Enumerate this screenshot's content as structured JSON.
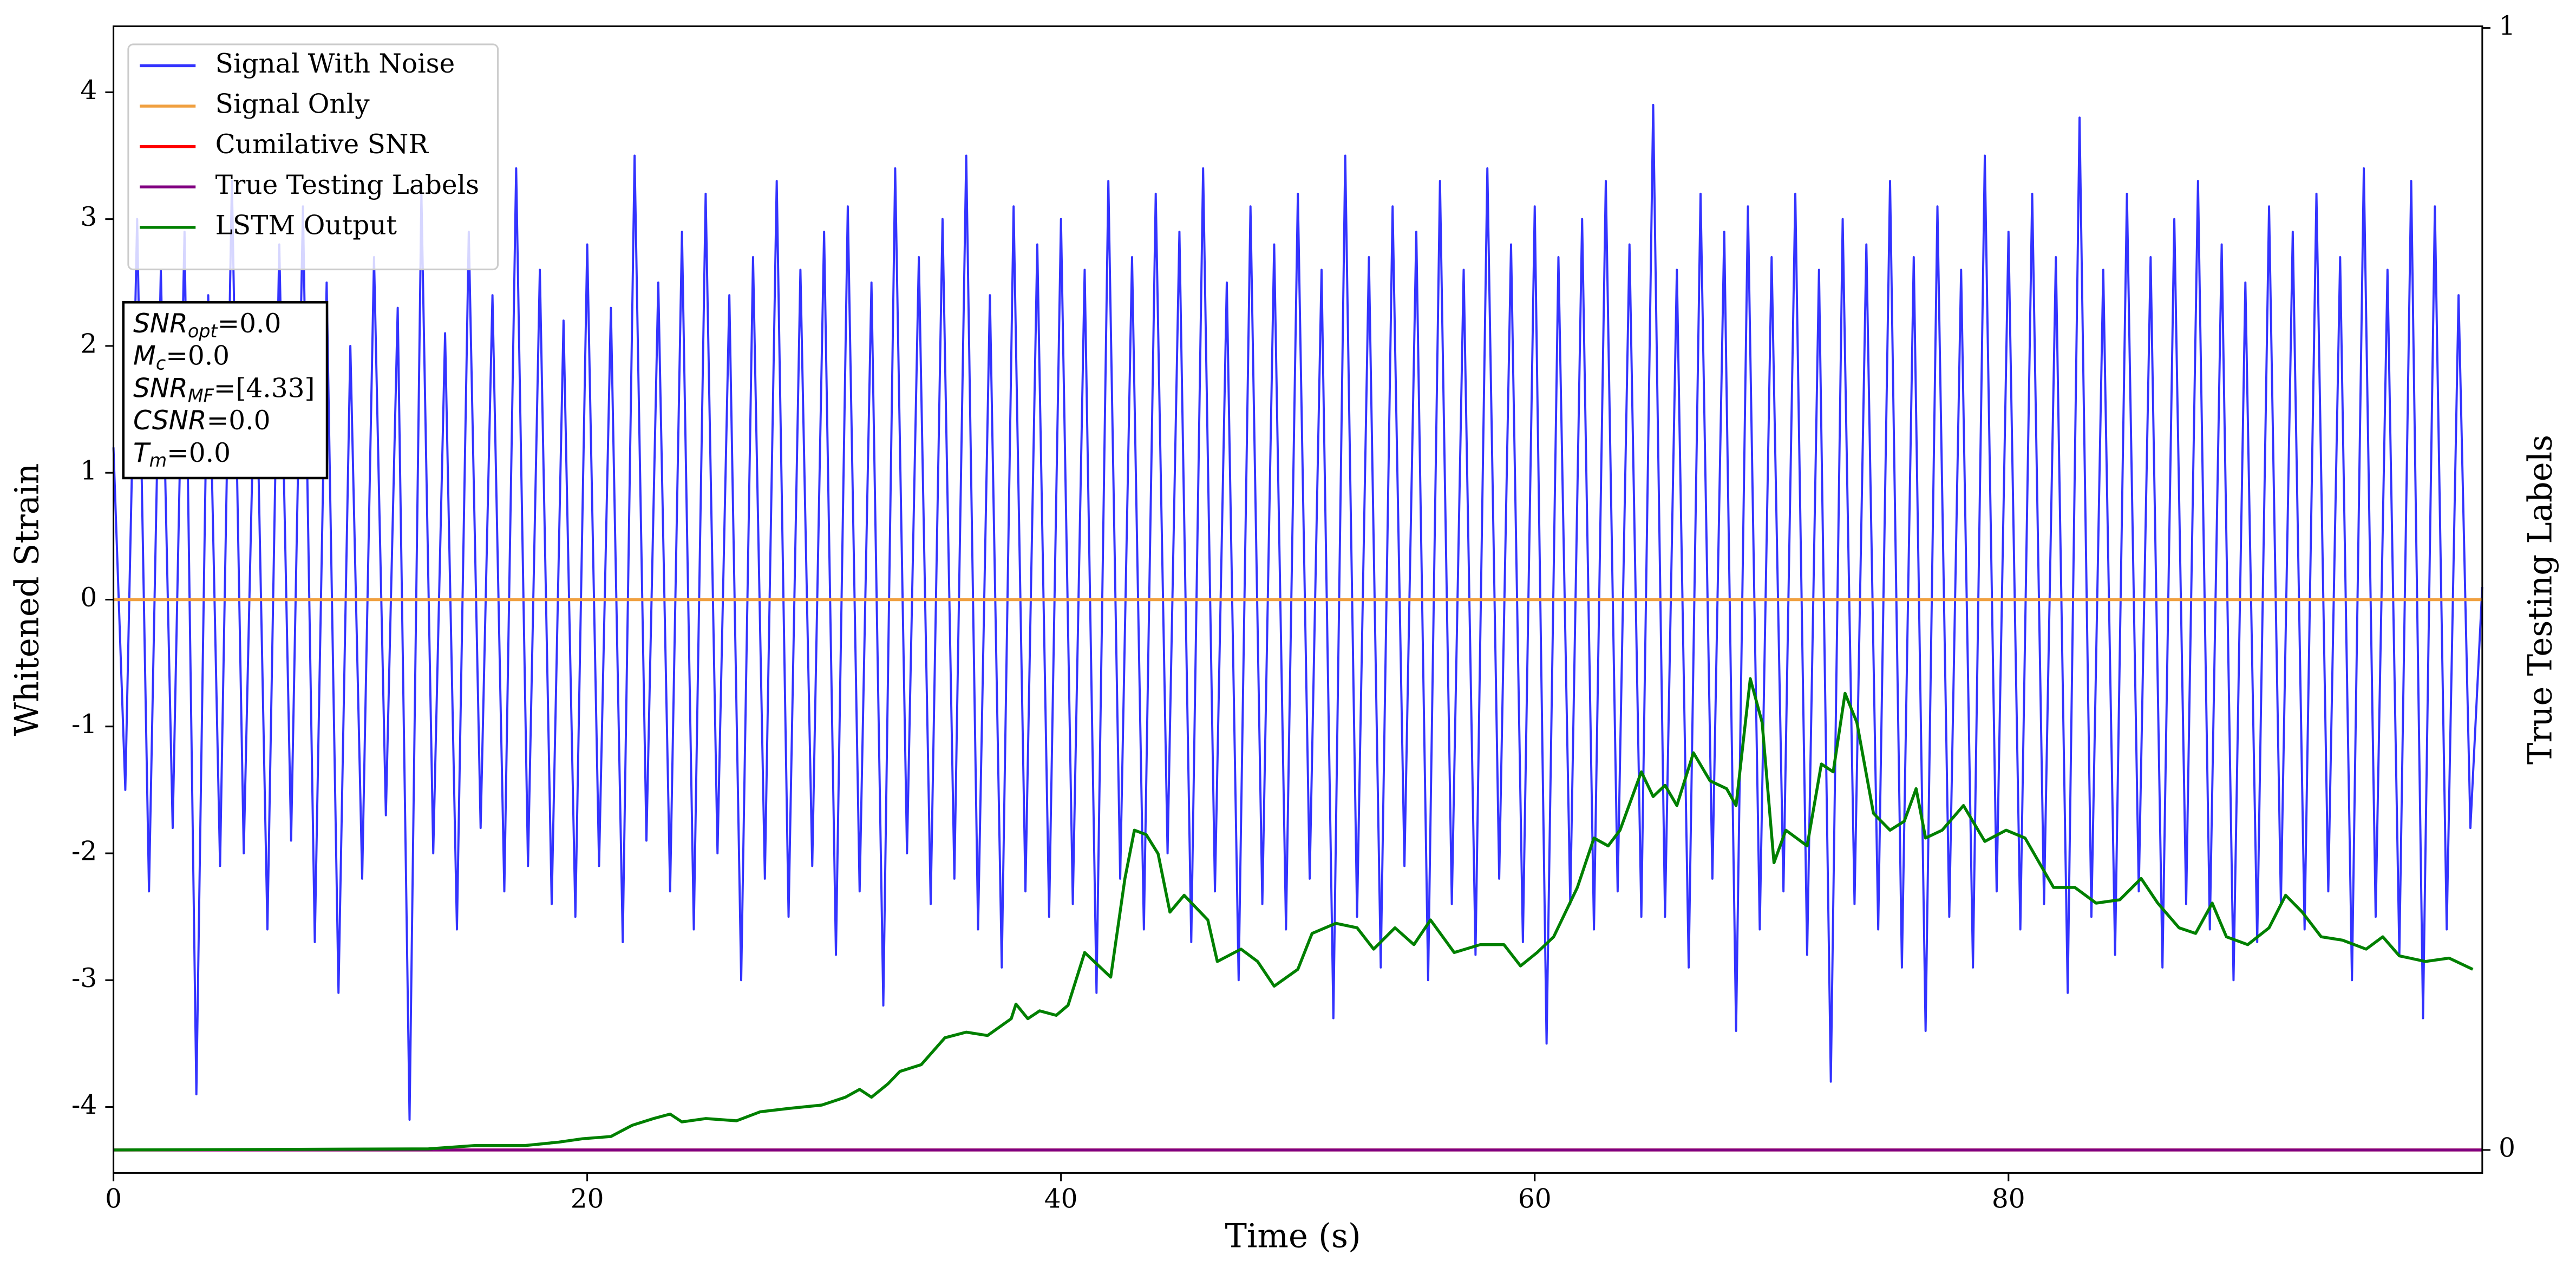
{
  "chart_data": {
    "type": "line",
    "xlabel": "Time (s)",
    "ylabel": "Whitened Strain",
    "y2label": "True Testing Labels",
    "xlim": [
      0,
      100
    ],
    "ylim": [
      -4.52,
      4.52
    ],
    "y2lim": [
      -0.0205,
      1.0015
    ],
    "xticks": [
      0,
      20,
      40,
      60,
      80
    ],
    "yticks": [
      -4,
      -3,
      -2,
      -1,
      0,
      1,
      2,
      3,
      4
    ],
    "y2ticks": [
      0,
      1
    ],
    "legend": "upper left",
    "annotations": [
      {
        "symbol": "SNR",
        "subscript": "opt",
        "text": "=0.0"
      },
      {
        "symbol": "M",
        "subscript": "c",
        "text": "=0.0"
      },
      {
        "symbol": "SNR",
        "subscript": "MF",
        "text": "=[4.33]"
      },
      {
        "symbol": "CSNR",
        "text": "=0.0"
      },
      {
        "symbol": "T",
        "subscript": "m",
        "text": "=0.0"
      }
    ],
    "series": [
      {
        "name": "Signal With Noise",
        "color": "#3333ff",
        "x": [
          0,
          0.5,
          1,
          1.5,
          2,
          2.5,
          3,
          3.5,
          4,
          4.5,
          5,
          5.5,
          6,
          6.5,
          7,
          7.5,
          8,
          8.5,
          9,
          9.5,
          10,
          10.5,
          11,
          11.5,
          12,
          12.5,
          13,
          13.5,
          14,
          14.5,
          15,
          15.5,
          16,
          16.5,
          17,
          17.5,
          18,
          18.5,
          19,
          19.5,
          20,
          20.5,
          21,
          21.5,
          22,
          22.5,
          23,
          23.5,
          24,
          24.5,
          25,
          25.5,
          26,
          26.5,
          27,
          27.5,
          28,
          28.5,
          29,
          29.5,
          30,
          30.5,
          31,
          31.5,
          32,
          32.5,
          33,
          33.5,
          34,
          34.5,
          35,
          35.5,
          36,
          36.5,
          37,
          37.5,
          38,
          38.5,
          39,
          39.5,
          40,
          40.5,
          41,
          41.5,
          42,
          42.5,
          43,
          43.5,
          44,
          44.5,
          45,
          45.5,
          46,
          46.5,
          47,
          47.5,
          48,
          48.5,
          49,
          49.5,
          50,
          50.5,
          51,
          51.5,
          52,
          52.5,
          53,
          53.5,
          54,
          54.5,
          55,
          55.5,
          56,
          56.5,
          57,
          57.5,
          58,
          58.5,
          59,
          59.5,
          60,
          60.5,
          61,
          61.5,
          62,
          62.5,
          63,
          63.5,
          64,
          64.5,
          65,
          65.5,
          66,
          66.5,
          67,
          67.5,
          68,
          68.5,
          69,
          69.5,
          70,
          70.5,
          71,
          71.5,
          72,
          72.5,
          73,
          73.5,
          74,
          74.5,
          75,
          75.5,
          76,
          76.5,
          77,
          77.5,
          78,
          78.5,
          79,
          79.5,
          80,
          80.5,
          81,
          81.5,
          82,
          82.5,
          83,
          83.5,
          84,
          84.5,
          85,
          85.5,
          86,
          86.5,
          87,
          87.5,
          88,
          88.5,
          89,
          89.5,
          90,
          90.5,
          91,
          91.5,
          92,
          92.5,
          93,
          93.5,
          94,
          94.5,
          95,
          95.5,
          96,
          96.5,
          97,
          97.5,
          98,
          98.5,
          99,
          99.5,
          100
        ],
        "values": [
          1.2,
          -1.5,
          3.0,
          -2.3,
          2.6,
          -1.8,
          2.9,
          -3.9,
          2.4,
          -2.1,
          3.3,
          -2.0,
          2.2,
          -2.6,
          2.8,
          -1.9,
          3.1,
          -2.7,
          2.5,
          -3.1,
          2.0,
          -2.2,
          2.7,
          -1.7,
          2.3,
          -4.1,
          3.2,
          -2.0,
          2.1,
          -2.6,
          2.9,
          -1.8,
          2.4,
          -2.3,
          3.4,
          -2.1,
          2.6,
          -2.4,
          2.2,
          -2.5,
          2.8,
          -2.1,
          2.3,
          -2.7,
          3.5,
          -1.9,
          2.5,
          -2.3,
          2.9,
          -2.6,
          3.2,
          -2.0,
          2.4,
          -3.0,
          2.7,
          -2.2,
          3.3,
          -2.5,
          2.6,
          -2.1,
          2.9,
          -2.8,
          3.1,
          -2.3,
          2.5,
          -3.2,
          3.4,
          -2.0,
          2.7,
          -2.4,
          3.0,
          -2.2,
          3.5,
          -2.6,
          2.4,
          -2.9,
          3.1,
          -2.3,
          2.8,
          -2.5,
          3.0,
          -2.4,
          2.6,
          -3.1,
          3.3,
          -2.2,
          2.7,
          -2.6,
          3.2,
          -2.0,
          2.9,
          -2.7,
          3.4,
          -2.3,
          2.5,
          -3.0,
          3.1,
          -2.4,
          2.8,
          -2.6,
          3.2,
          -2.2,
          2.6,
          -3.3,
          3.5,
          -2.5,
          2.7,
          -2.9,
          3.1,
          -2.1,
          2.9,
          -3.0,
          3.3,
          -2.4,
          2.6,
          -2.8,
          3.4,
          -2.2,
          2.8,
          -2.7,
          3.1,
          -3.5,
          2.7,
          -2.4,
          3.0,
          -2.6,
          3.3,
          -2.3,
          2.8,
          -2.5,
          3.9,
          -2.5,
          2.6,
          -2.9,
          3.2,
          -2.2,
          2.9,
          -3.4,
          3.1,
          -2.6,
          2.7,
          -2.3,
          3.2,
          -2.8,
          2.6,
          -3.8,
          3.0,
          -2.4,
          2.8,
          -2.6,
          3.3,
          -2.9,
          2.7,
          -3.4,
          3.1,
          -2.5,
          2.6,
          -2.9,
          3.5,
          -2.3,
          2.9,
          -2.6,
          3.2,
          -2.4,
          2.7,
          -3.1,
          3.8,
          -2.5,
          2.6,
          -2.8,
          3.2,
          -2.3,
          2.7,
          -2.9,
          3.0,
          -2.4,
          3.3,
          -2.6,
          2.8,
          -3.0,
          2.5,
          -2.7,
          3.1,
          -2.4,
          2.9,
          -2.6,
          3.2,
          -2.3,
          2.7,
          -3.0,
          3.4,
          -2.5,
          2.6,
          -2.8,
          3.3,
          -3.3,
          3.1,
          -2.6,
          2.4,
          -1.8,
          0.1
        ]
      },
      {
        "name": "Signal Only",
        "color": "#f0a040",
        "x": [
          0,
          100
        ],
        "values": [
          0,
          0
        ]
      },
      {
        "name": "Cumilative SNR",
        "color": "#ff0000",
        "axis": "y2",
        "x": [
          0,
          100
        ],
        "values": [
          0,
          0
        ]
      },
      {
        "name": "True Testing Labels",
        "color": "#800080",
        "axis": "y2",
        "x": [
          0,
          100
        ],
        "values": [
          0,
          0
        ]
      },
      {
        "name": "LSTM Output",
        "color": "#008000",
        "axis": "y2",
        "x": [
          0,
          13.3,
          15.3,
          17.4,
          18.8,
          19.8,
          21,
          21.9,
          22.8,
          23.5,
          24,
          25,
          26.3,
          27.3,
          28.5,
          29.9,
          30.9,
          31.5,
          32,
          32.7,
          33.2,
          34.1,
          35.1,
          36,
          36.9,
          37.9,
          38.1,
          38.6,
          39.1,
          39.8,
          40.3,
          41,
          42.1,
          42.7,
          43.1,
          43.6,
          44.1,
          44.6,
          45.2,
          46.2,
          46.6,
          47.6,
          48.3,
          49,
          50,
          50.6,
          51.6,
          52.5,
          53.2,
          54.1,
          54.9,
          55.6,
          56.6,
          57.7,
          58.7,
          59.4,
          60.1,
          60.8,
          61.8,
          62.5,
          63.1,
          63.6,
          64.5,
          65,
          65.5,
          66,
          66.7,
          67.4,
          68.1,
          68.5,
          69.1,
          69.6,
          70.1,
          70.6,
          71.5,
          72.1,
          72.6,
          73.1,
          73.6,
          74.3,
          75,
          75.6,
          76.1,
          76.5,
          77.2,
          78.1,
          79,
          79.9,
          80.7,
          81.9,
          82.8,
          83.7,
          84.7,
          85.6,
          86.3,
          87.2,
          87.9,
          88.6,
          89.2,
          90.1,
          91,
          91.7,
          92.4,
          93.2,
          94.1,
          95.1,
          95.8,
          96.5,
          97.6,
          98.6,
          99.6
        ],
        "values": [
          0,
          0.001,
          0.004,
          0.004,
          0.007,
          0.01,
          0.012,
          0.022,
          0.028,
          0.032,
          0.025,
          0.028,
          0.026,
          0.034,
          0.037,
          0.04,
          0.047,
          0.054,
          0.047,
          0.059,
          0.07,
          0.076,
          0.1,
          0.105,
          0.102,
          0.117,
          0.13,
          0.117,
          0.124,
          0.12,
          0.129,
          0.176,
          0.154,
          0.242,
          0.285,
          0.281,
          0.264,
          0.212,
          0.227,
          0.205,
          0.168,
          0.179,
          0.168,
          0.146,
          0.161,
          0.193,
          0.202,
          0.198,
          0.179,
          0.198,
          0.183,
          0.205,
          0.176,
          0.183,
          0.183,
          0.164,
          0.176,
          0.19,
          0.234,
          0.278,
          0.271,
          0.285,
          0.337,
          0.315,
          0.325,
          0.307,
          0.354,
          0.329,
          0.322,
          0.307,
          0.42,
          0.381,
          0.256,
          0.285,
          0.271,
          0.344,
          0.337,
          0.407,
          0.381,
          0.3,
          0.285,
          0.293,
          0.322,
          0.278,
          0.285,
          0.307,
          0.275,
          0.285,
          0.278,
          0.234,
          0.234,
          0.22,
          0.223,
          0.242,
          0.22,
          0.198,
          0.193,
          0.22,
          0.19,
          0.183,
          0.198,
          0.227,
          0.212,
          0.19,
          0.187,
          0.179,
          0.19,
          0.173,
          0.168,
          0.171,
          0.161
        ]
      }
    ]
  }
}
